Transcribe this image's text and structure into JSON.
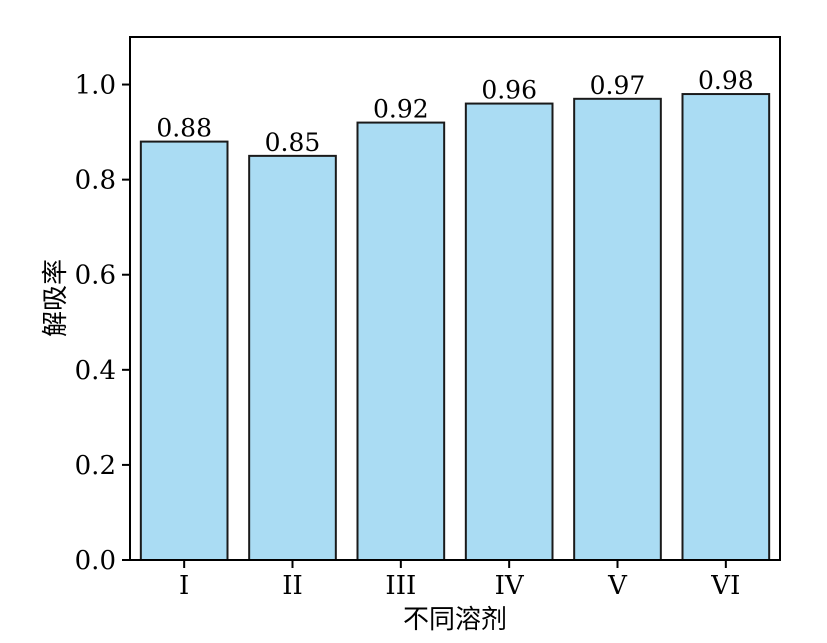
{
  "chart_data": {
    "type": "bar",
    "categories": [
      "I",
      "II",
      "III",
      "IV",
      "V",
      "VI"
    ],
    "values": [
      0.88,
      0.85,
      0.92,
      0.96,
      0.97,
      0.98
    ],
    "data_labels": [
      "0.88",
      "0.85",
      "0.92",
      "0.96",
      "0.97",
      "0.98"
    ],
    "title": "",
    "xlabel": "不同溶剂",
    "ylabel": "解吸率",
    "ylim": [
      0,
      1.1
    ],
    "yticks": [
      0.0,
      0.2,
      0.4,
      0.6,
      0.8,
      1.0
    ],
    "ytick_labels": [
      "0.0",
      "0.2",
      "0.4",
      "0.6",
      "0.8",
      "1.0"
    ],
    "grid": false,
    "legend": "none",
    "bar_color": "#aadcf3",
    "bar_edge_color": "#1a1a1a"
  }
}
